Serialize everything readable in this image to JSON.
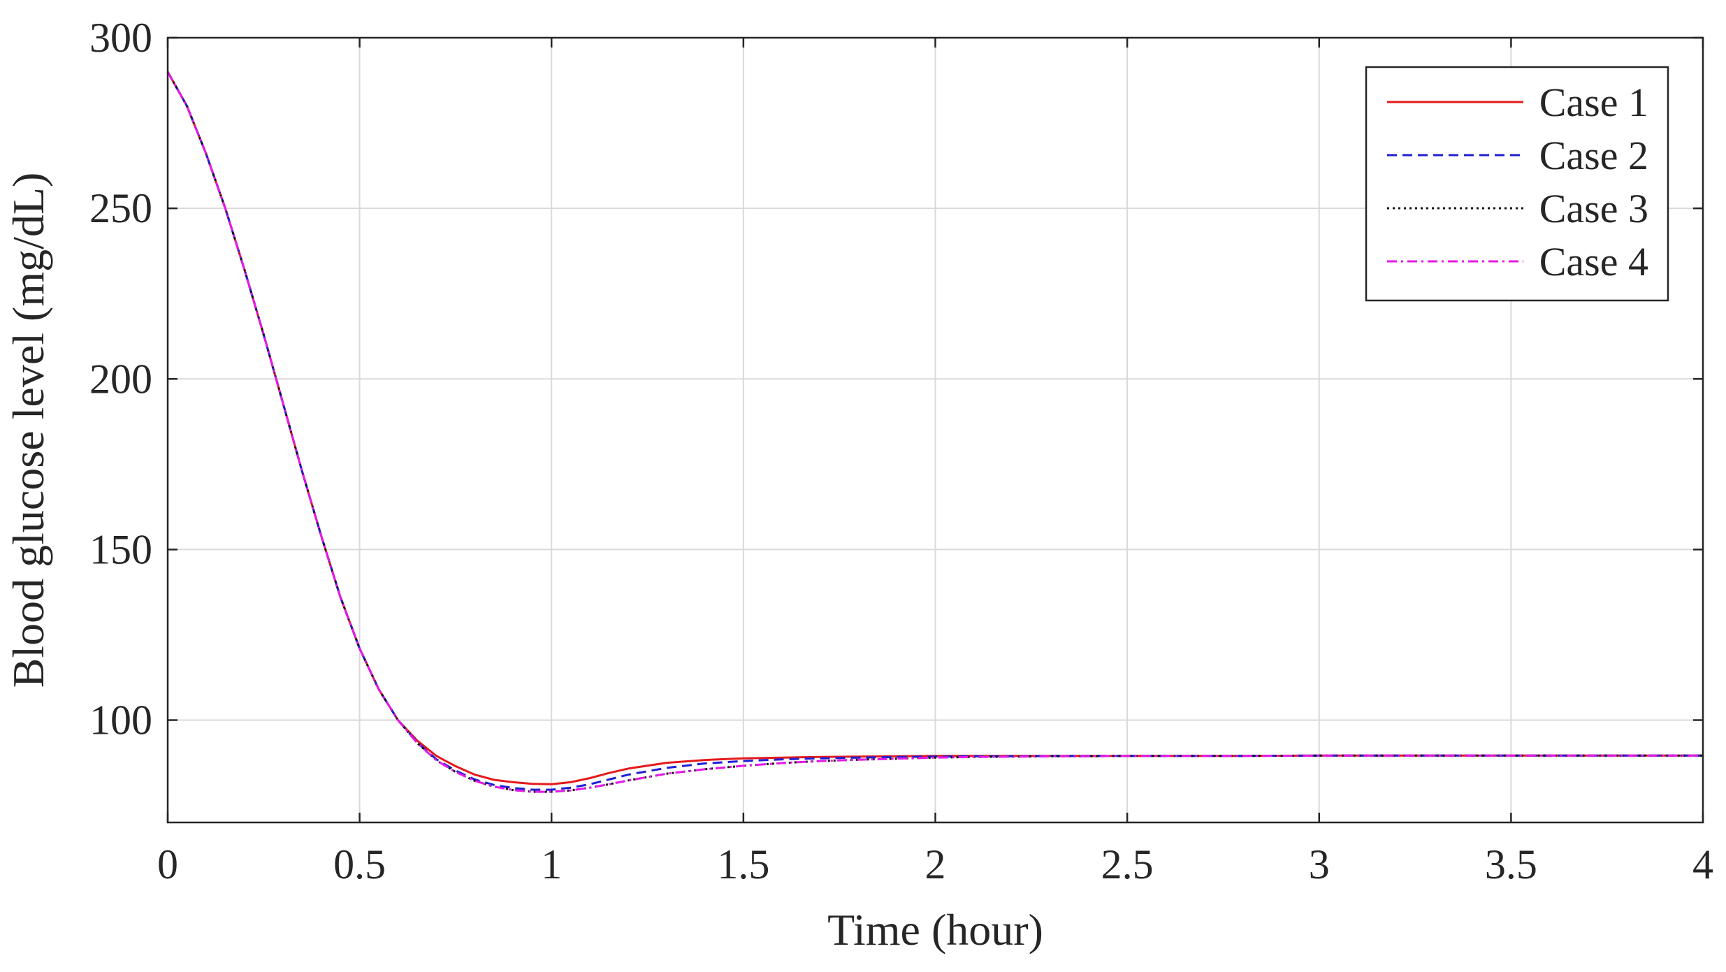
{
  "chart_data": {
    "type": "line",
    "title": "",
    "xlabel": "Time (hour)",
    "ylabel": "Blood glucose level (mg/dL)",
    "xlim": [
      0,
      4
    ],
    "ylim": [
      70,
      300
    ],
    "xticks": [
      0,
      0.5,
      1,
      1.5,
      2,
      2.5,
      3,
      3.5,
      4
    ],
    "xtick_labels": [
      "0",
      "0.5",
      "1",
      "1.5",
      "2",
      "2.5",
      "3",
      "3.5",
      "4"
    ],
    "yticks": [
      100,
      150,
      200,
      250,
      300
    ],
    "ytick_labels": [
      "100",
      "150",
      "200",
      "250",
      "300"
    ],
    "grid": true,
    "legend_position": "top-right",
    "x": [
      0,
      0.05,
      0.1,
      0.15,
      0.2,
      0.25,
      0.3,
      0.35,
      0.4,
      0.45,
      0.5,
      0.55,
      0.6,
      0.65,
      0.7,
      0.75,
      0.8,
      0.85,
      0.9,
      0.95,
      1.0,
      1.05,
      1.1,
      1.15,
      1.2,
      1.3,
      1.4,
      1.5,
      1.6,
      1.7,
      1.8,
      1.9,
      2.0,
      2.1,
      2.2,
      2.3,
      2.4,
      2.5,
      2.75,
      3.0,
      3.25,
      3.5,
      3.75,
      4.0
    ],
    "series": [
      {
        "name": "Case 1",
        "color": "#e41a1c",
        "dash": "solid",
        "values": [
          290,
          280,
          266,
          250,
          232,
          213,
          193,
          173,
          154,
          136,
          121,
          109,
          100,
          94,
          89.5,
          86.5,
          84,
          82.5,
          81.8,
          81.3,
          81.2,
          81.8,
          83,
          84.5,
          85.8,
          87.5,
          88.3,
          88.8,
          89.0,
          89.2,
          89.3,
          89.4,
          89.5,
          89.5,
          89.5,
          89.5,
          89.5,
          89.5,
          89.5,
          89.6,
          89.6,
          89.6,
          89.6,
          89.6
        ]
      },
      {
        "name": "Case 2",
        "color": "#1f1fd6",
        "dash": "dashed",
        "values": [
          290,
          280,
          266,
          250,
          232,
          213,
          193,
          173,
          154,
          136,
          121,
          109,
          100,
          93.5,
          88.5,
          85.2,
          82.6,
          81.0,
          80.1,
          79.6,
          79.6,
          80.2,
          81.2,
          82.6,
          84.0,
          86.0,
          87.3,
          88.0,
          88.5,
          88.8,
          89.0,
          89.2,
          89.3,
          89.4,
          89.4,
          89.5,
          89.5,
          89.5,
          89.5,
          89.6,
          89.6,
          89.6,
          89.6,
          89.6
        ]
      },
      {
        "name": "Case 3",
        "color": "#111111",
        "dash": "dotted",
        "values": [
          290,
          280,
          266,
          250,
          232,
          213,
          193,
          173,
          154,
          136,
          121,
          109,
          100,
          93.3,
          88.2,
          84.8,
          82.2,
          80.5,
          79.5,
          79.0,
          79.0,
          79.4,
          80.2,
          81.2,
          82.3,
          84.3,
          85.6,
          86.6,
          87.4,
          88.0,
          88.4,
          88.7,
          89.0,
          89.2,
          89.3,
          89.4,
          89.4,
          89.5,
          89.5,
          89.6,
          89.6,
          89.6,
          89.6,
          89.6
        ]
      },
      {
        "name": "Case 4",
        "color": "#e619e6",
        "dash": "dashdot",
        "values": [
          290,
          280,
          266,
          250,
          232,
          213,
          193,
          173,
          154,
          136,
          121,
          109,
          100,
          93.3,
          88.2,
          84.8,
          82.2,
          80.5,
          79.5,
          79.0,
          79.0,
          79.4,
          80.2,
          81.2,
          82.3,
          84.3,
          85.6,
          86.6,
          87.4,
          88.0,
          88.4,
          88.7,
          89.0,
          89.2,
          89.3,
          89.4,
          89.4,
          89.5,
          89.5,
          89.6,
          89.6,
          89.6,
          89.6,
          89.6
        ]
      }
    ]
  }
}
